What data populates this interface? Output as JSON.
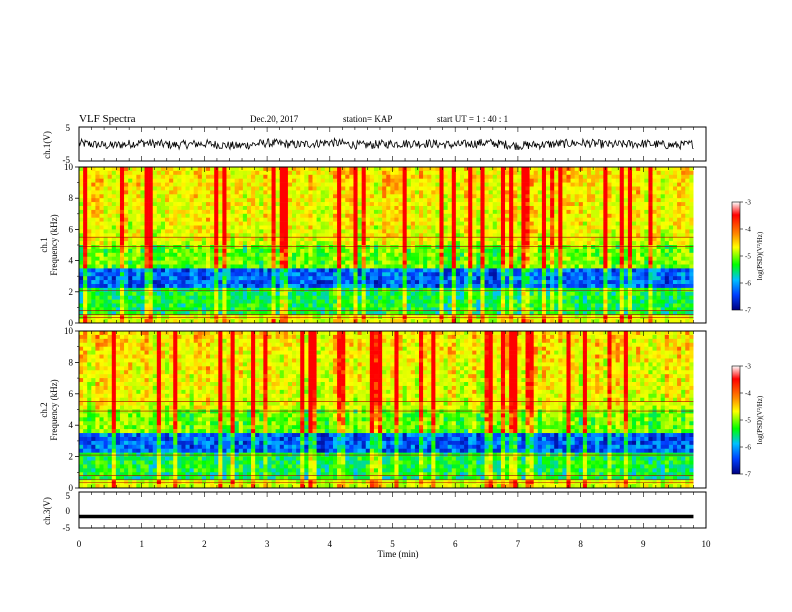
{
  "header": {
    "title": "VLF Spectra",
    "date": "Dec.20, 2017",
    "station": "station= KAP",
    "start_ut": "start  UT =  1 : 40 : 1"
  },
  "colors": {
    "colorbar_stops": [
      "#ffffff",
      "#ff0000",
      "#ff8c00",
      "#ffff00",
      "#00ff00",
      "#00c0ff",
      "#0040ff",
      "#000080"
    ]
  },
  "chart_data": [
    {
      "type": "line",
      "panel": "ch1-waveform",
      "ylabel": "ch.1(V)",
      "ylim": [
        -5,
        5
      ],
      "yticks": [
        "5",
        "-5"
      ],
      "x": [
        0,
        0.5,
        1,
        1.5,
        2,
        2.5,
        3,
        3.5,
        4,
        4.5,
        5,
        5.5,
        6,
        6.5,
        7,
        7.5,
        8,
        8.5,
        9,
        9.5,
        9.8
      ],
      "values": [
        0.2,
        -0.5,
        0.4,
        -0.3,
        0.1,
        -0.6,
        0.3,
        -0.2,
        0.5,
        -0.4,
        0.1,
        0.2,
        -0.3,
        0.4,
        -0.5,
        -0.1,
        0.3,
        -0.2,
        0.1,
        -0.4,
        0.0
      ]
    },
    {
      "type": "heatmap",
      "panel": "ch1-spectrogram",
      "ylabel": "ch.1\nFrequency (kHz)",
      "ylim": [
        0,
        10
      ],
      "yticks": [
        "0",
        "2",
        "4",
        "6",
        "8",
        "10"
      ],
      "colorbar": {
        "label": "log(PSD)(V²/Hz)",
        "range": [
          -7,
          -3
        ],
        "ticks": [
          "-3",
          "-4",
          "-5",
          "-6",
          "-7"
        ]
      }
    },
    {
      "type": "heatmap",
      "panel": "ch2-spectrogram",
      "ylabel": "ch.2\nFrequency (kHz)",
      "ylim": [
        0,
        10
      ],
      "yticks": [
        "0",
        "2",
        "4",
        "6",
        "8",
        "10"
      ],
      "colorbar": {
        "label": "log(PSD)(V²/Hz)",
        "range": [
          -7,
          -3
        ],
        "ticks": [
          "-3",
          "-4",
          "-5",
          "-6",
          "-7"
        ]
      }
    },
    {
      "type": "line",
      "panel": "ch3-waveform",
      "ylabel": "ch.3(V)",
      "ylim": [
        -5,
        5
      ],
      "yticks": [
        "5",
        "0",
        "-5"
      ],
      "x": [
        0,
        9.8
      ],
      "values": [
        -1.8,
        -1.8
      ]
    }
  ],
  "xaxis": {
    "label": "Time  (min)",
    "ticks": [
      "0",
      "1",
      "2",
      "3",
      "4",
      "5",
      "6",
      "7",
      "8",
      "9",
      "10"
    ],
    "xlim": [
      0,
      10
    ]
  }
}
